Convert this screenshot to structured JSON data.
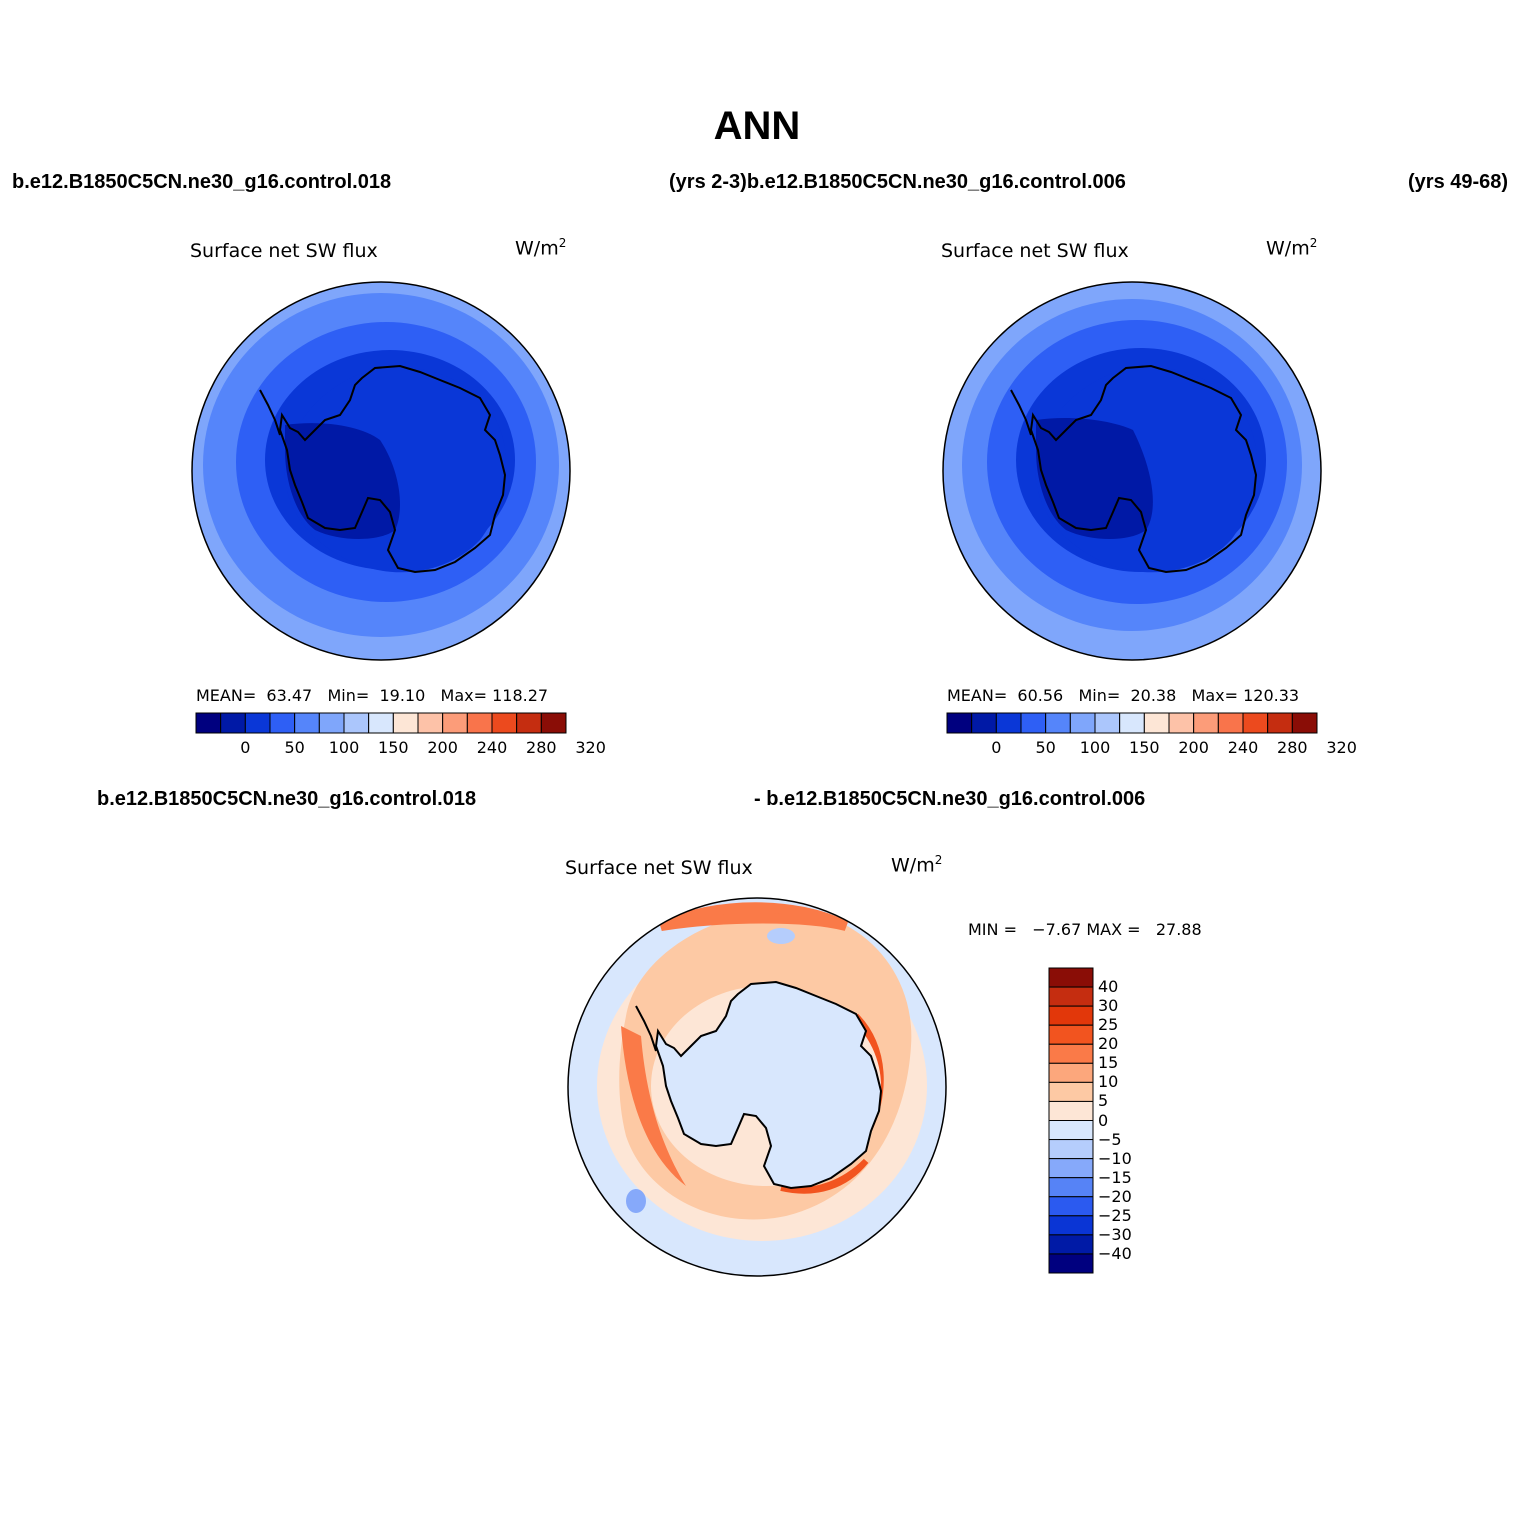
{
  "title": "ANN",
  "header": {
    "case1": "b.e12.B1850C5CN.ne30_g16.control.018",
    "years1": "(yrs 2-3)",
    "case2": "b.e12.B1850C5CN.ne30_g16.control.006",
    "years2": "(yrs 49-68)"
  },
  "panels": [
    {
      "title": "Surface net SW flux",
      "units": "W/m",
      "units_sup": "2",
      "stats": {
        "mean_label": "MEAN=",
        "mean": "63.47",
        "min_label": "Min=",
        "min": "19.10",
        "max_label": "Max=",
        "max": "118.27"
      }
    },
    {
      "title": "Surface net SW flux",
      "units": "W/m",
      "units_sup": "2",
      "stats": {
        "mean_label": "MEAN=",
        "mean": "60.56",
        "min_label": "Min=",
        "min": "20.38",
        "max_label": "Max=",
        "max": "120.33"
      }
    }
  ],
  "abs_colorbar": {
    "colors": [
      "#00007f",
      "#0019a6",
      "#0a37d7",
      "#2e5ff5",
      "#5585fa",
      "#7fa6fb",
      "#abc6fc",
      "#d8e7fd",
      "#fde6d6",
      "#fdc2a8",
      "#fc9c79",
      "#f9744b",
      "#ec4a1e",
      "#c52d10",
      "#8a0d06"
    ],
    "tick_labels": [
      "0",
      "50",
      "100",
      "150",
      "200",
      "240",
      "280",
      "320"
    ]
  },
  "diff": {
    "label_left": "b.e12.B1850C5CN.ne30_g16.control.018",
    "label_right": "- b.e12.B1850C5CN.ne30_g16.control.006",
    "title": "Surface net SW flux",
    "units": "W/m",
    "units_sup": "2",
    "min_label": "MIN =",
    "min": "−7.67",
    "max_label": "MAX =",
    "max": "27.88",
    "colorbar": {
      "colors_top_to_bottom": [
        "#8a0d06",
        "#c52d10",
        "#e2370a",
        "#f2541f",
        "#fa7a48",
        "#fca77c",
        "#fdc9a4",
        "#fde6d6",
        "#d8e7fd",
        "#b5cdfc",
        "#86a9fa",
        "#5683f6",
        "#2b5af0",
        "#0a35d5",
        "#001aa6",
        "#00007f"
      ],
      "tick_labels": [
        "40",
        "30",
        "25",
        "20",
        "15",
        "10",
        "5",
        "0",
        "−5",
        "−10",
        "−15",
        "−20",
        "−25",
        "−30",
        "−40"
      ]
    }
  }
}
